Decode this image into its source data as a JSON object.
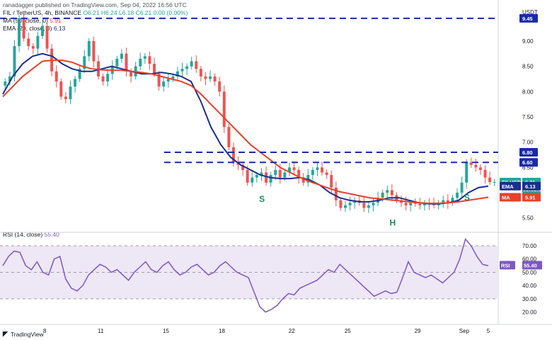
{
  "header": {
    "credit": "ranadagger published on TradingView.com, Sep 04, 2022 16:56 UTC",
    "symbol": "FIL / TetherUS, 4h, BINANCE",
    "ohlc": "O6.21 H6.24 L6.18 C6.21 0.00 (0.00%)",
    "ma_label": "MA (50, close, 0)",
    "ma_value": "5.91",
    "ema_label": "EMA (20, close, 0)",
    "ema_value": "6.13",
    "rsi_label": "RSI (14, close)",
    "rsi_value": "55.40",
    "currency": "USDT",
    "footer": "TradingView"
  },
  "colors": {
    "up": "#26a69a",
    "down": "#ef5350",
    "ema": "#1c2e8c",
    "ma": "#e8402a",
    "dashed": "#1a2aa8",
    "rsi_line": "#7e57c2",
    "rsi_band": "#ede7f6",
    "annotation": "#1b8a5a"
  },
  "chart_data": [
    {
      "type": "candlestick",
      "title": "FIL / TetherUS, 4h, BINANCE",
      "ylabel": "USDT",
      "ylim": [
        5.3,
        9.7
      ],
      "x_ticks": [
        "8",
        "11",
        "15",
        "18",
        "22",
        "25",
        "29",
        "Sep",
        "5"
      ],
      "y_ticks": [
        5.5,
        6.0,
        6.5,
        7.0,
        7.5,
        8.0,
        8.5,
        9.0
      ],
      "closes": [
        8.2,
        8.3,
        8.9,
        9.45,
        9.05,
        8.9,
        8.85,
        9.1,
        9.3,
        8.85,
        8.4,
        8.2,
        7.9,
        7.85,
        8.1,
        8.25,
        8.45,
        8.7,
        9.0,
        8.6,
        8.3,
        8.2,
        8.35,
        8.5,
        8.65,
        8.75,
        8.4,
        8.3,
        8.5,
        8.65,
        8.7,
        8.55,
        8.35,
        8.1,
        8.2,
        8.25,
        8.3,
        8.4,
        8.45,
        8.5,
        8.6,
        8.45,
        8.3,
        8.25,
        8.3,
        8.2,
        8.0,
        7.3,
        6.9,
        6.6,
        6.55,
        6.45,
        6.2,
        6.3,
        6.35,
        6.4,
        6.2,
        6.35,
        6.45,
        6.3,
        6.4,
        6.5,
        6.45,
        6.3,
        6.2,
        6.35,
        6.45,
        6.5,
        6.4,
        6.35,
        6.1,
        5.85,
        5.7,
        5.75,
        5.8,
        5.85,
        5.8,
        5.7,
        5.75,
        5.8,
        5.9,
        6.0,
        6.05,
        5.95,
        5.85,
        5.8,
        5.75,
        5.8,
        5.78,
        5.75,
        5.8,
        5.78,
        5.75,
        5.8,
        5.85,
        5.8,
        5.9,
        6.0,
        6.2,
        6.6,
        6.55,
        6.5,
        6.45,
        6.3,
        6.21,
        6.21
      ],
      "series": [
        {
          "name": "EMA (20, close, 0)",
          "values": [
            7.95,
            8.3,
            8.55,
            8.7,
            8.75,
            8.7,
            8.55,
            8.45,
            8.4,
            8.4,
            8.45,
            8.5,
            8.45,
            8.4,
            8.35,
            8.35,
            8.38,
            8.35,
            8.3,
            8.2,
            7.8,
            7.3,
            6.95,
            6.7,
            6.55,
            6.45,
            6.35,
            6.3,
            6.28,
            6.28,
            6.3,
            6.25,
            6.15,
            6.0,
            5.9,
            5.85,
            5.82,
            5.82,
            5.85,
            5.9,
            5.9,
            5.85,
            5.8,
            5.78,
            5.78,
            5.8,
            5.85,
            6.0,
            6.1,
            6.13
          ]
        },
        {
          "name": "MA (50, close, 0)",
          "values": [
            7.9,
            8.1,
            8.3,
            8.45,
            8.6,
            8.62,
            8.62,
            8.58,
            8.5,
            8.45,
            8.43,
            8.42,
            8.42,
            8.4,
            8.38,
            8.35,
            8.3,
            8.25,
            8.2,
            8.12,
            7.95,
            7.75,
            7.55,
            7.35,
            7.15,
            6.95,
            6.8,
            6.65,
            6.5,
            6.4,
            6.3,
            6.22,
            6.15,
            6.08,
            6.02,
            5.98,
            5.94,
            5.9,
            5.88,
            5.86,
            5.84,
            5.82,
            5.8,
            5.79,
            5.79,
            5.8,
            5.82,
            5.85,
            5.88,
            5.91
          ]
        }
      ],
      "levels": [
        {
          "value": 9.45,
          "label": "9.45"
        },
        {
          "value": 6.8,
          "label": "6.80"
        },
        {
          "value": 6.6,
          "label": "6.60"
        }
      ],
      "price_tags": [
        {
          "name": "FILUSDT",
          "value": "6.21",
          "sub": "03:03:52"
        },
        {
          "name": "EMA",
          "value": "6.13"
        },
        {
          "name": "MA",
          "value": "5.91"
        }
      ],
      "annotations": [
        "S",
        "H",
        "S"
      ]
    },
    {
      "type": "line",
      "title": "RSI (14, close)",
      "ylim": [
        15,
        78
      ],
      "y_ticks": [
        20.0,
        30.0,
        40.0,
        50.0,
        60.0,
        70.0
      ],
      "bands": [
        30,
        50,
        70
      ],
      "values": [
        55,
        62,
        66,
        65,
        55,
        52,
        58,
        50,
        48,
        60,
        62,
        45,
        38,
        36,
        40,
        48,
        52,
        56,
        54,
        50,
        52,
        48,
        44,
        50,
        54,
        58,
        52,
        50,
        55,
        58,
        52,
        48,
        50,
        54,
        56,
        52,
        48,
        50,
        55,
        58,
        54,
        50,
        48,
        46,
        35,
        24,
        20,
        22,
        25,
        30,
        34,
        33,
        38,
        40,
        42,
        44,
        48,
        52,
        50,
        56,
        52,
        48,
        44,
        40,
        36,
        32,
        34,
        36,
        34,
        35,
        46,
        58,
        50,
        48,
        46,
        48,
        45,
        42,
        46,
        50,
        60,
        75,
        70,
        62,
        56,
        55
      ],
      "current": "55.40"
    }
  ]
}
